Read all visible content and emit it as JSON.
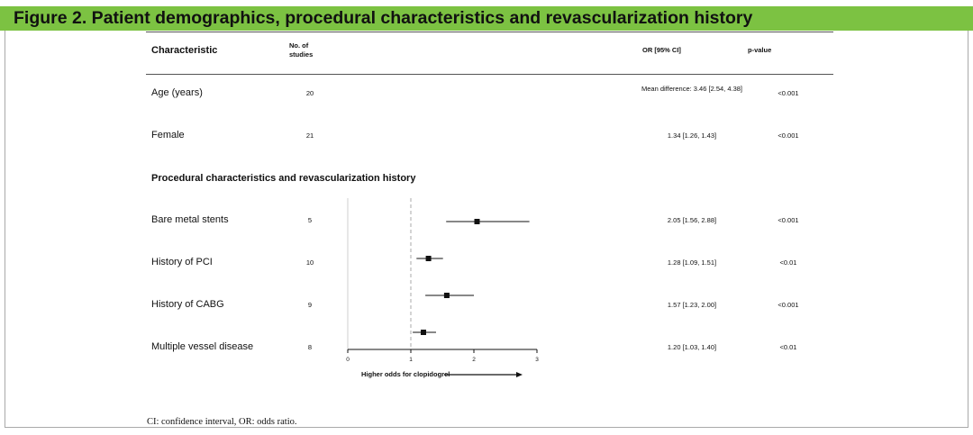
{
  "figure_title": "Figure 2. Patient demographics, procedural characteristics and revascularization history",
  "columns": {
    "characteristic": "Characteristic",
    "studies_line1": "No. of",
    "studies_line2": "studies",
    "or_ci": "OR [95% CI]",
    "p_value": "p-value"
  },
  "rows": [
    {
      "label": "Age (years)",
      "n": "20",
      "estimate": "Mean difference: 3.46 [2.54, 4.38]",
      "p": "<0.001"
    },
    {
      "label": "Female",
      "n": "21",
      "estimate": "1.34 [1.26, 1.43]",
      "p": "<0.001"
    }
  ],
  "section_title": "Procedural characteristics and revascularization history",
  "forest_rows": [
    {
      "label": "Bare metal stents",
      "n": "5",
      "estimate": "2.05 [1.56, 2.88]",
      "p": "<0.001"
    },
    {
      "label": "History of PCI",
      "n": "10",
      "estimate": "1.28 [1.09, 1.51]",
      "p": "<0.01"
    },
    {
      "label": "History of CABG",
      "n": "9",
      "estimate": "1.57 [1.23, 2.00]",
      "p": "<0.001"
    },
    {
      "label": "Multiple vessel disease",
      "n": "8",
      "estimate": "1.20 [1.03, 1.40]",
      "p": "<0.01"
    }
  ],
  "chart_data": {
    "type": "forest",
    "categories": [
      "Bare metal stents",
      "History of PCI",
      "History of CABG",
      "Multiple vessel disease"
    ],
    "series": [
      {
        "values": [
          2.05,
          1.28,
          1.57,
          1.2
        ],
        "ci_low": [
          1.56,
          1.09,
          1.23,
          1.03
        ],
        "ci_high": [
          2.88,
          1.51,
          2.0,
          1.4
        ]
      }
    ],
    "xlim": [
      0,
      3
    ],
    "xticks": [
      "0",
      "1",
      "2",
      "3"
    ],
    "reference_line": 1,
    "xlabel": "Higher odds for clopidogrel",
    "colors": {
      "marker": "#111111",
      "ci_line": "#111111",
      "reference_line": "#aaaaaa",
      "axis": "#111111"
    }
  },
  "footnote": "CI: confidence interval, OR: odds ratio."
}
